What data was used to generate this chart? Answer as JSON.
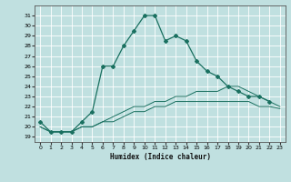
{
  "title": "",
  "xlabel": "Humidex (Indice chaleur)",
  "bg_color": "#c0e0e0",
  "grid_color": "#ffffff",
  "line_color": "#1a7060",
  "xlim": [
    -0.5,
    23.5
  ],
  "ylim": [
    18.5,
    32.0
  ],
  "xticks": [
    0,
    1,
    2,
    3,
    4,
    5,
    6,
    7,
    8,
    9,
    10,
    11,
    12,
    13,
    14,
    15,
    16,
    17,
    18,
    19,
    20,
    21,
    22,
    23
  ],
  "yticks": [
    19,
    20,
    21,
    22,
    23,
    24,
    25,
    26,
    27,
    28,
    29,
    30,
    31
  ],
  "main_x": [
    0,
    1,
    2,
    3,
    4,
    5,
    6,
    7,
    8,
    9,
    10,
    11,
    12,
    13,
    14,
    15,
    16,
    17,
    18,
    19,
    20,
    21,
    22
  ],
  "main_y": [
    20.5,
    19.5,
    19.5,
    19.5,
    20.5,
    21.5,
    26.0,
    26.0,
    28.0,
    29.5,
    31.0,
    31.0,
    28.5,
    29.0,
    28.5,
    26.5,
    25.5,
    25.0,
    24.0,
    23.5,
    23.0,
    23.0,
    22.5
  ],
  "line1_x": [
    0,
    1,
    2,
    3,
    4,
    5,
    6,
    7,
    8,
    9,
    10,
    11,
    12,
    13,
    14,
    15,
    16,
    17,
    18,
    19,
    20,
    21,
    22,
    23
  ],
  "line1_y": [
    20.0,
    19.5,
    19.5,
    19.5,
    20.0,
    20.0,
    20.5,
    21.0,
    21.5,
    22.0,
    22.0,
    22.5,
    22.5,
    23.0,
    23.0,
    23.5,
    23.5,
    23.5,
    24.0,
    24.0,
    23.5,
    23.0,
    22.5,
    22.0
  ],
  "line2_x": [
    0,
    1,
    2,
    3,
    4,
    5,
    6,
    7,
    8,
    9,
    10,
    11,
    12,
    13,
    14,
    15,
    16,
    17,
    18,
    19,
    20,
    21,
    22,
    23
  ],
  "line2_y": [
    20.0,
    19.5,
    19.5,
    19.5,
    20.0,
    20.0,
    20.5,
    20.5,
    21.0,
    21.5,
    21.5,
    22.0,
    22.0,
    22.5,
    22.5,
    22.5,
    22.5,
    22.5,
    22.5,
    22.5,
    22.5,
    22.0,
    22.0,
    21.8
  ]
}
